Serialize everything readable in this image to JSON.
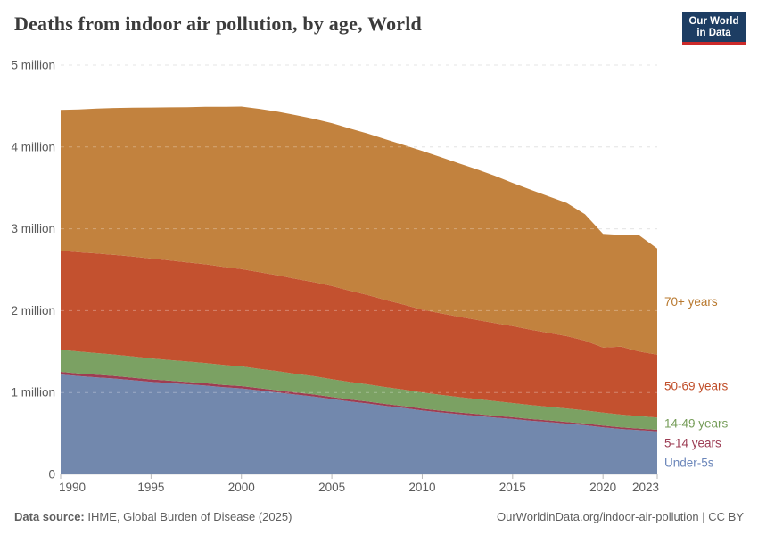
{
  "header": {
    "title": "Deaths from indoor air pollution, by age, World",
    "logo": {
      "line1": "Our World",
      "line2": "in Data"
    }
  },
  "colors": {
    "logo_bg": "#1d3d63",
    "logo_bar": "#cc2a2a",
    "title_text": "#3b3b3b",
    "axis_text": "#5b5b5b",
    "gridline": "#dcdcdc",
    "tick_mark": "#b8b8b8",
    "footer_text": "#5e5e5e"
  },
  "chart_data": {
    "type": "area",
    "stacked": true,
    "title": "Deaths from indoor air pollution, by age, World",
    "xlabel": "",
    "ylabel": "",
    "unit": "deaths per year (millions)",
    "ylim": [
      0,
      5
    ],
    "x_range": [
      1990,
      2023
    ],
    "grid": "horizontal dashed",
    "legend_position": "right of plot, aligned with band ends",
    "x": [
      1990,
      1991,
      1992,
      1993,
      1994,
      1995,
      1996,
      1997,
      1998,
      1999,
      2000,
      2001,
      2002,
      2003,
      2004,
      2005,
      2006,
      2007,
      2008,
      2009,
      2010,
      2011,
      2012,
      2013,
      2014,
      2015,
      2016,
      2017,
      2018,
      2019,
      2020,
      2021,
      2022,
      2023
    ],
    "x_ticks": [
      1990,
      1995,
      2000,
      2005,
      2010,
      2015,
      2020,
      2023
    ],
    "y_ticks": [
      {
        "value": 0,
        "label": "0"
      },
      {
        "value": 1,
        "label": "1 million"
      },
      {
        "value": 2,
        "label": "2 million"
      },
      {
        "value": 3,
        "label": "3 million"
      },
      {
        "value": 4,
        "label": "4 million"
      },
      {
        "value": 5,
        "label": "5 million"
      }
    ],
    "series": [
      {
        "name": "Under-5s",
        "fill": "#7288ad",
        "text_color": "#6b86ba",
        "values": [
          1.22,
          1.2,
          1.185,
          1.17,
          1.15,
          1.13,
          1.115,
          1.1,
          1.085,
          1.065,
          1.05,
          1.025,
          1.0,
          0.975,
          0.95,
          0.92,
          0.89,
          0.865,
          0.835,
          0.81,
          0.78,
          0.757,
          0.735,
          0.715,
          0.695,
          0.676,
          0.655,
          0.638,
          0.62,
          0.6,
          0.575,
          0.555,
          0.54,
          0.525
        ]
      },
      {
        "name": "5-14 years",
        "fill": "#9e3d52",
        "text_color": "#9c3c53",
        "values": [
          0.033,
          0.032,
          0.032,
          0.031,
          0.031,
          0.03,
          0.03,
          0.029,
          0.029,
          0.028,
          0.028,
          0.027,
          0.027,
          0.026,
          0.026,
          0.025,
          0.025,
          0.024,
          0.024,
          0.023,
          0.023,
          0.022,
          0.022,
          0.022,
          0.022,
          0.022,
          0.021,
          0.021,
          0.021,
          0.021,
          0.021,
          0.02,
          0.02,
          0.02
        ]
      },
      {
        "name": "14-49 years",
        "fill": "#7ba163",
        "text_color": "#769d59",
        "values": [
          0.27,
          0.268,
          0.265,
          0.262,
          0.259,
          0.256,
          0.253,
          0.25,
          0.247,
          0.244,
          0.241,
          0.237,
          0.233,
          0.228,
          0.223,
          0.218,
          0.214,
          0.21,
          0.206,
          0.202,
          0.198,
          0.193,
          0.188,
          0.183,
          0.178,
          0.173,
          0.17,
          0.167,
          0.164,
          0.161,
          0.158,
          0.155,
          0.152,
          0.15
        ]
      },
      {
        "name": "50-69 years",
        "fill": "#c3512f",
        "text_color": "#c04d28",
        "values": [
          1.21,
          1.213,
          1.216,
          1.218,
          1.22,
          1.22,
          1.216,
          1.211,
          1.205,
          1.198,
          1.19,
          1.181,
          1.171,
          1.16,
          1.15,
          1.138,
          1.114,
          1.09,
          1.064,
          1.037,
          1.01,
          0.996,
          0.982,
          0.968,
          0.954,
          0.94,
          0.921,
          0.902,
          0.883,
          0.852,
          0.795,
          0.83,
          0.788,
          0.768
        ]
      },
      {
        "name": "70+ years",
        "fill": "#c2823e",
        "text_color": "#b8782e",
        "values": [
          1.72,
          1.745,
          1.77,
          1.795,
          1.82,
          1.845,
          1.87,
          1.895,
          1.925,
          1.955,
          1.985,
          1.995,
          2.0,
          2.0,
          1.995,
          1.99,
          1.983,
          1.973,
          1.962,
          1.95,
          1.94,
          1.91,
          1.875,
          1.84,
          1.8,
          1.75,
          1.71,
          1.668,
          1.628,
          1.545,
          1.39,
          1.365,
          1.42,
          1.295
        ]
      }
    ]
  },
  "footer": {
    "source_label": "Data source:",
    "source_text": "IHME, Global Burden of Disease (2025)",
    "attribution": "OurWorldinData.org/indoor-air-pollution | CC BY"
  }
}
